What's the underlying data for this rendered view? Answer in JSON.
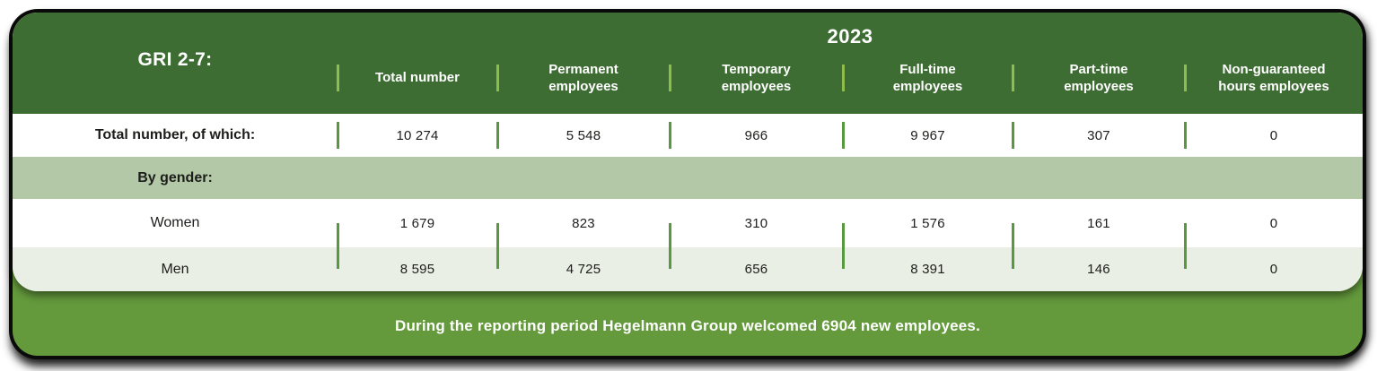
{
  "colors": {
    "header_green": "#3E6D33",
    "footer_green": "#649A3C",
    "gender_row_sage": "#B2C8A7",
    "men_row_pale": "#E9EFE4",
    "header_separator": "#8EBD4E",
    "body_separator": "#58993F",
    "text_ink": "#1D1D1B",
    "text_white": "#FFFFFF"
  },
  "chart_data": {
    "type": "table",
    "title": "GRI 2-7:",
    "year": "2023",
    "columns": [
      "Total number",
      "Permanent employees",
      "Temporary employees",
      "Full-time employees",
      "Part-time employees",
      "Non-guaranteed hours employees"
    ],
    "rows": [
      {
        "label": "Total number, of which:",
        "values": [
          "10 274",
          "5 548",
          "966",
          "9 967",
          "307",
          "0"
        ]
      },
      {
        "label": "By gender:",
        "values": []
      },
      {
        "label": "Women",
        "values": [
          "1 679",
          "823",
          "310",
          "1 576",
          "161",
          "0"
        ]
      },
      {
        "label": "Men",
        "values": [
          "8 595",
          "4 725",
          "656",
          "8 391",
          "146",
          "0"
        ]
      }
    ],
    "note": "During the reporting period Hegelmann Group welcomed 6904 new employees."
  }
}
